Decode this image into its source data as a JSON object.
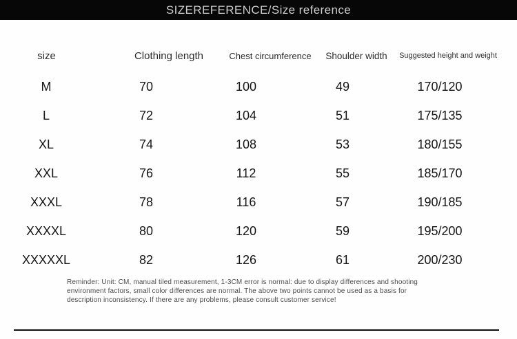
{
  "banner": {
    "title": "SIZEREFERENCE/Size reference"
  },
  "table": {
    "columns": {
      "size": "size",
      "clothing_length": "Clothing length",
      "chest": "Chest circumference",
      "shoulder": "Shoulder width",
      "height_weight": "Suggested height and weight"
    },
    "rows": [
      {
        "size": "M",
        "clothing_length": "70",
        "chest": "100",
        "shoulder": "49",
        "height_weight": "170/120"
      },
      {
        "size": "L",
        "clothing_length": "72",
        "chest": "104",
        "shoulder": "51",
        "height_weight": "175/135"
      },
      {
        "size": "XL",
        "clothing_length": "74",
        "chest": "108",
        "shoulder": "53",
        "height_weight": "180/155"
      },
      {
        "size": "XXL",
        "clothing_length": "76",
        "chest": "112",
        "shoulder": "55",
        "height_weight": "185/170"
      },
      {
        "size": "XXXL",
        "clothing_length": "78",
        "chest": "116",
        "shoulder": "57",
        "height_weight": "190/185"
      },
      {
        "size": "XXXXL",
        "clothing_length": "80",
        "chest": "120",
        "shoulder": "59",
        "height_weight": "195/200"
      },
      {
        "size": "XXXXXL",
        "clothing_length": "82",
        "chest": "126",
        "shoulder": "61",
        "height_weight": "200/230"
      }
    ]
  },
  "reminder": {
    "text": "Reminder: Unit: CM, manual tiled measurement, 1-3CM error is normal: due to display differences and shooting environment factors, small color differences are normal. The above two points cannot be used as a basis for description inconsistency. If there are any problems, please consult customer service!"
  },
  "colors": {
    "banner_bg": "#070707",
    "banner_text": "#cdcdcd",
    "table_text": "#151515",
    "header_text": "#2b2b2b",
    "note_text": "#4a4a4a"
  },
  "chart_data": {
    "type": "table",
    "title": "SIZEREFERENCE/Size reference",
    "columns": [
      "size",
      "Clothing length",
      "Chest circumference",
      "Shoulder width",
      "Suggested height and weight"
    ],
    "rows": [
      [
        "M",
        70,
        100,
        49,
        "170/120"
      ],
      [
        "L",
        72,
        104,
        51,
        "175/135"
      ],
      [
        "XL",
        74,
        108,
        53,
        "180/155"
      ],
      [
        "XXL",
        76,
        112,
        55,
        "185/170"
      ],
      [
        "XXXL",
        78,
        116,
        57,
        "190/185"
      ],
      [
        "XXXXL",
        80,
        120,
        59,
        "195/200"
      ],
      [
        "XXXXXL",
        82,
        126,
        61,
        "200/230"
      ]
    ],
    "units": "CM",
    "footnote": "Reminder: Unit: CM, manual tiled measurement, 1-3CM error is normal: due to display differences and shooting environment factors, small color differences are normal. The above two points cannot be used as a basis for description inconsistency. If there are any problems, please consult customer service!"
  }
}
